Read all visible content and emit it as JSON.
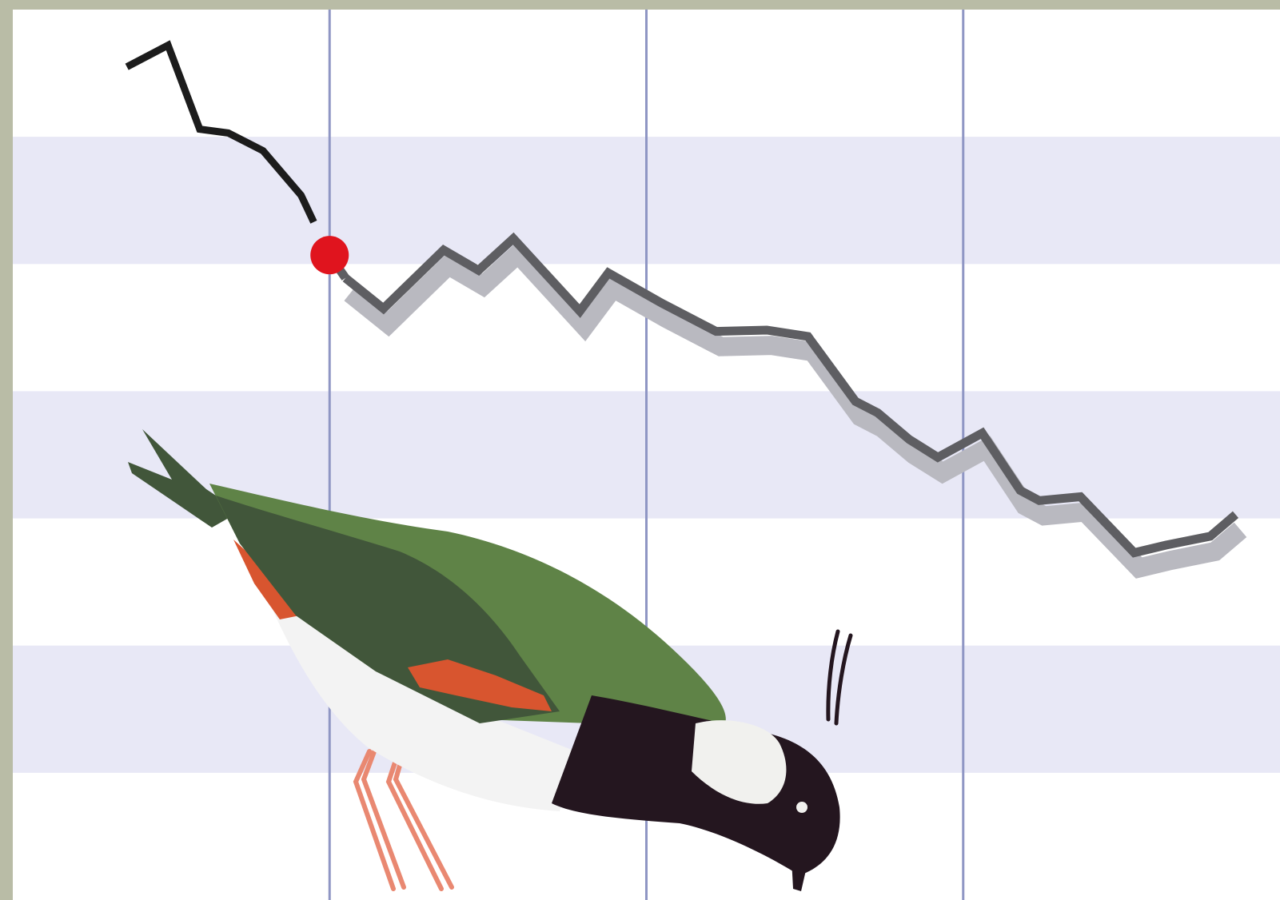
{
  "colors": {
    "frame": "#b9bca6",
    "background": "#ffffff",
    "band": "#e8e8f6",
    "grid_line": "#8f96c4",
    "history_line": "#1c1c1c",
    "trend_line": "#5e5e62",
    "trend_shadow": "#b9b9c0",
    "marker": "#e0141e"
  },
  "illustration": {
    "subject": "northern-lapwing",
    "colors": {
      "back": "#5f8347",
      "wing_dark": "#41563a",
      "belly": "#f3f3f3",
      "chest": "#24161f",
      "cheek": "#f1f1ee",
      "rufous": "#d8552f",
      "legs": "#e98871"
    }
  },
  "chart_data": {
    "type": "line",
    "title": "",
    "xlabel": "",
    "ylabel": "",
    "xlim": [
      0,
      4
    ],
    "ylim": [
      0,
      7
    ],
    "grid": {
      "vertical_lines": [
        1,
        2,
        3
      ],
      "horizontal_bands": [
        [
          1,
          2
        ],
        [
          3,
          4
        ],
        [
          5,
          6
        ]
      ]
    },
    "legend": "none",
    "tick_labels_shown": false,
    "series": [
      {
        "style": "solid-black",
        "points": [
          [
            0.36,
            6.55
          ],
          [
            0.49,
            6.72
          ],
          [
            0.59,
            6.06
          ],
          [
            0.68,
            6.03
          ],
          [
            0.79,
            5.89
          ],
          [
            0.91,
            5.54
          ],
          [
            0.95,
            5.33
          ]
        ]
      },
      {
        "style": "grey-with-shadow",
        "points": [
          [
            1.05,
            4.89
          ],
          [
            1.17,
            4.65
          ],
          [
            1.36,
            5.11
          ],
          [
            1.47,
            4.95
          ],
          [
            1.58,
            5.2
          ],
          [
            1.79,
            4.63
          ],
          [
            1.88,
            4.93
          ],
          [
            2.05,
            4.69
          ],
          [
            2.22,
            4.47
          ],
          [
            2.38,
            4.48
          ],
          [
            2.51,
            4.43
          ],
          [
            2.66,
            3.92
          ],
          [
            2.73,
            3.83
          ],
          [
            2.83,
            3.62
          ],
          [
            2.92,
            3.48
          ],
          [
            3.06,
            3.67
          ],
          [
            3.18,
            3.22
          ],
          [
            3.24,
            3.14
          ],
          [
            3.37,
            3.17
          ],
          [
            3.54,
            2.73
          ],
          [
            3.64,
            2.79
          ],
          [
            3.78,
            2.86
          ],
          [
            3.86,
            3.03
          ]
        ]
      }
    ],
    "markers": [
      {
        "x": 1.0,
        "y": 5.07,
        "shape": "circle"
      }
    ]
  }
}
